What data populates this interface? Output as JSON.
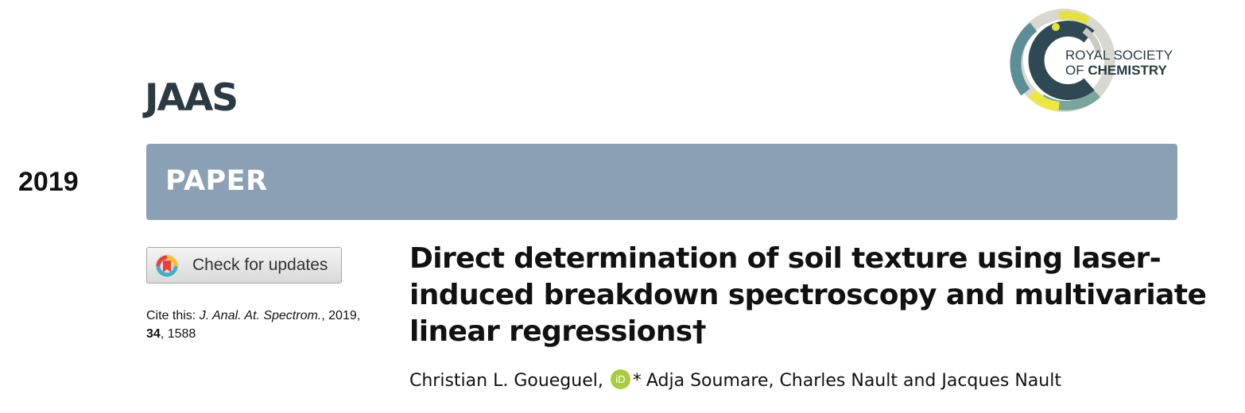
{
  "header": {
    "journal": "JAAS",
    "publisher_line1": "ROYAL SOCIETY",
    "publisher_line2_prefix": "OF",
    "publisher_line2_bold": "CHEMISTRY"
  },
  "sidebar": {
    "year": "2019"
  },
  "banner": {
    "label": "PAPER"
  },
  "check_updates": {
    "label": "Check for updates"
  },
  "citation": {
    "prefix": "Cite this:",
    "journal_abbrev": "J. Anal. At. Spectrom.",
    "year": ", 2019,",
    "volume": "34",
    "pages": ", 1588"
  },
  "article": {
    "title_lines": [
      "Direct determination of soil texture using laser-",
      "induced breakdown spectroscopy and multivariate",
      "linear regressions†"
    ],
    "author1": "Christian L. Goueguel,",
    "orcid_text": "iD",
    "corresponding_mark": "*",
    "other_authors": "Adja Soumare, Charles Nault and Jacques Nault"
  },
  "colors": {
    "banner": "#8aa0b4",
    "journal_text": "#2b3a42",
    "orcid": "#a6ce39"
  }
}
